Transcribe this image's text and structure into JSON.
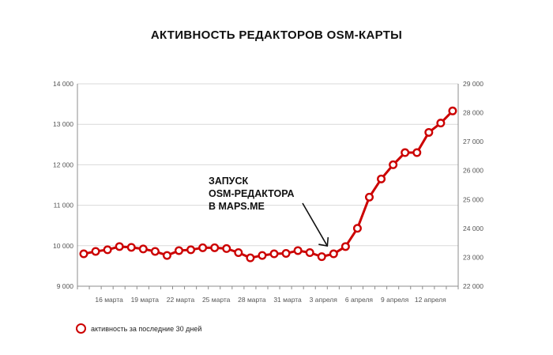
{
  "chart_data": {
    "type": "line",
    "title": "АКТИВНОСТЬ РЕДАКТОРОВ OSM-КАРТЫ",
    "xlabel": "",
    "ylabel": "",
    "x_tick_labels": [
      "16 марта",
      "19 марта",
      "22 марта",
      "25 марта",
      "28 марта",
      "31 марта",
      "3 апреля",
      "6 апреля",
      "9 апреля",
      "12 апреля"
    ],
    "y_left_ticks": [
      "9 000",
      "10 000",
      "11 000",
      "12 000",
      "13 000",
      "14 000"
    ],
    "y_right_ticks": [
      "22 000",
      "23 000",
      "24 000",
      "25 000",
      "26 000",
      "27 000",
      "28 000",
      "29 000"
    ],
    "ylim": [
      9000,
      14000
    ],
    "y2lim": [
      22000,
      29000
    ],
    "grid": "horizontal",
    "legend_position": "bottom-left",
    "series": [
      {
        "name": "активность за последние 30 дней",
        "color": "#cc0000",
        "values": [
          9800,
          9860,
          9900,
          9980,
          9960,
          9920,
          9860,
          9760,
          9880,
          9900,
          9950,
          9950,
          9930,
          9830,
          9700,
          9760,
          9800,
          9810,
          9880,
          9830,
          9730,
          9800,
          9980,
          10430,
          11200,
          11650,
          12000,
          12300,
          12300,
          12800,
          13030,
          13330
        ]
      }
    ],
    "annotation": {
      "lines": [
        "ЗАПУСК",
        "OSM-РЕДАКТОРА",
        "В MAPS.ME"
      ]
    }
  }
}
